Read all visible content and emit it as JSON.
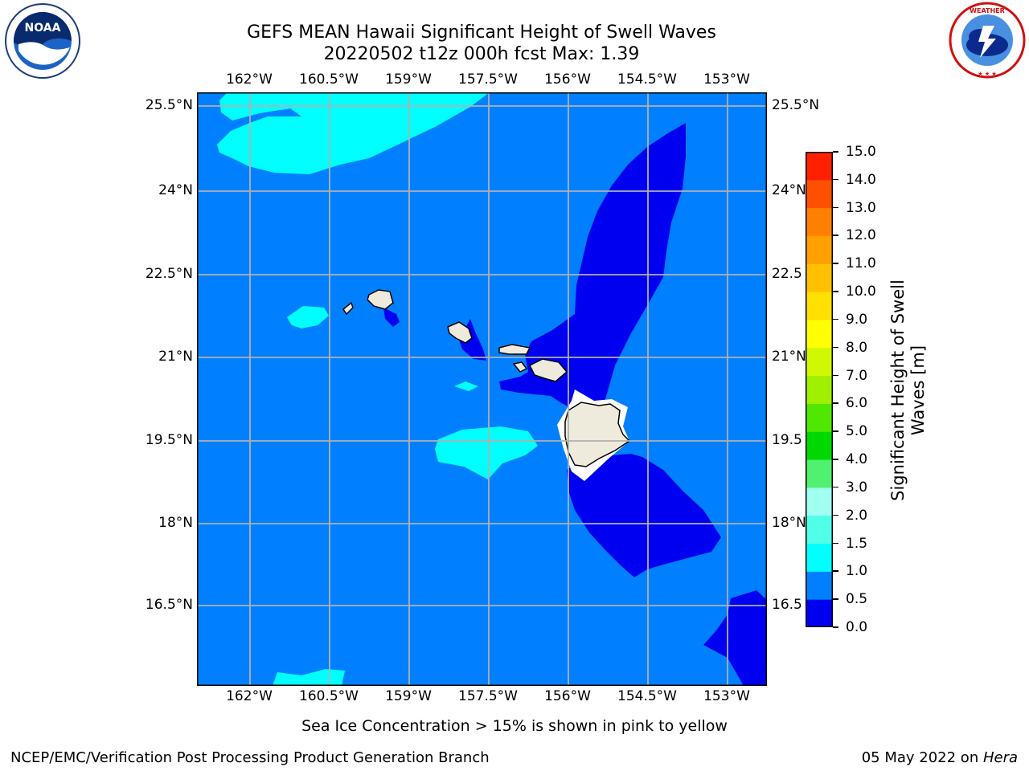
{
  "title": {
    "line1": "GEFS MEAN Hawaii Significant Height of Swell Waves",
    "line2": "20220502 t12z 000h fcst   Max: 1.39"
  },
  "logos": {
    "left": {
      "name": "noaa-logo",
      "text": "NOAA",
      "ring_text": "NATIONAL OCEANIC AND ATMOSPHERIC ADMINISTRATION · U.S. DEPARTMENT OF COMMERCE"
    },
    "right": {
      "name": "nws-logo",
      "ring_text": "NATIONAL WEATHER SERVICE"
    }
  },
  "map": {
    "lon_ticks": [
      "162°W",
      "160.5°W",
      "159°W",
      "157.5°W",
      "156°W",
      "154.5°W",
      "153°W"
    ],
    "lat_ticks": [
      "25.5°N",
      "24°N",
      "22.5°N",
      "21°N",
      "19.5°N",
      "18°N",
      "16.5°N"
    ],
    "lat_ticks_right": [
      "25.5°N",
      "24°N",
      "22.5",
      "21°N",
      "19.5",
      "18°N",
      "16.5"
    ],
    "lon_range": [
      -163,
      -152.2
    ],
    "lat_range": [
      15.3,
      25.9
    ],
    "background_color": "#0080ff",
    "land_color": "#efebdc",
    "grid_color": "#b0b0b0"
  },
  "colorbar": {
    "label": "Significant Height of Swell Waves [m]",
    "label_line1": "Significant Height of Swell",
    "label_line2": "Waves [m]",
    "tick_labels": [
      "0.0",
      "0.5",
      "1.0",
      "1.5",
      "2.0",
      "3.0",
      "4.0",
      "5.0",
      "6.0",
      "7.0",
      "8.0",
      "9.0",
      "10.0",
      "11.0",
      "12.0",
      "13.0",
      "14.0",
      "15.0"
    ],
    "colors": [
      "#0000f0",
      "#0080ff",
      "#00ffff",
      "#50ffe8",
      "#a0fff0",
      "#50f070",
      "#00d800",
      "#50e800",
      "#a0f000",
      "#d0f800",
      "#ffff00",
      "#ffe000",
      "#ffc000",
      "#ffa000",
      "#ff8000",
      "#ff5000",
      "#ff2000"
    ]
  },
  "note": "Sea Ice Concentration > 15% is shown in pink to yellow",
  "footer": {
    "left": "NCEP/EMC/Verification Post Processing Product Generation Branch",
    "right_prefix": "05 May 2022 on ",
    "right_machine": "Hera"
  }
}
